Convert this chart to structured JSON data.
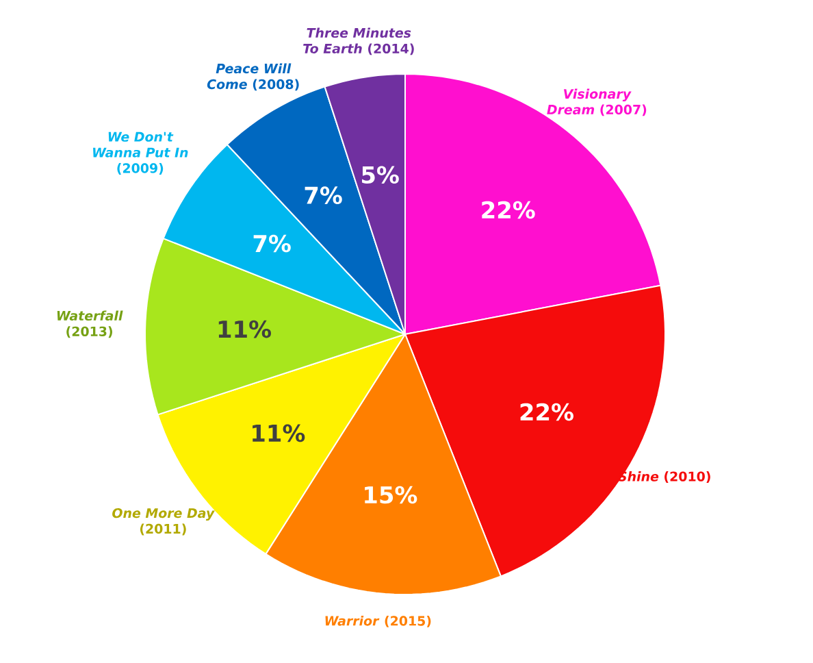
{
  "chart_data": {
    "type": "pie",
    "categories": [
      "*Visionary Dream* (2007)",
      "*Shine* (2010)",
      "*Warrior* (2015)",
      "*One More Day* (2011)",
      "*Waterfall* (2013)",
      "*We Don't Wanna Put In* (2009)",
      "*Peace Will Come* (2008)",
      "*Three Minutes To Earth* (2014)"
    ],
    "values": [
      22,
      22,
      15,
      11,
      11,
      7,
      7,
      5
    ],
    "value_labels": [
      "22%",
      "22%",
      "15%",
      "11%",
      "11%",
      "7%",
      "7%",
      "5%"
    ],
    "colors": [
      "#ff0fcf",
      "#f50c0c",
      "#ff7f00",
      "#fff200",
      "#a8e61d",
      "#00b7ef",
      "#0068c0",
      "#7030a0"
    ]
  }
}
